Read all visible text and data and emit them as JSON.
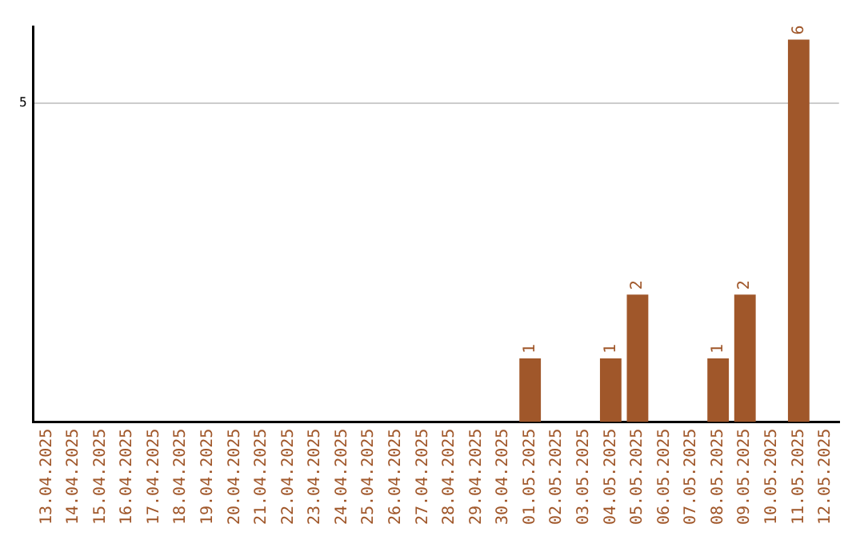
{
  "chart_data": {
    "type": "bar",
    "categories": [
      "13.04.2025",
      "14.04.2025",
      "15.04.2025",
      "16.04.2025",
      "17.04.2025",
      "18.04.2025",
      "19.04.2025",
      "20.04.2025",
      "21.04.2025",
      "22.04.2025",
      "23.04.2025",
      "24.04.2025",
      "25.04.2025",
      "26.04.2025",
      "27.04.2025",
      "28.04.2025",
      "29.04.2025",
      "30.04.2025",
      "01.05.2025",
      "02.05.2025",
      "03.05.2025",
      "04.05.2025",
      "05.05.2025",
      "06.05.2025",
      "07.05.2025",
      "08.05.2025",
      "09.05.2025",
      "10.05.2025",
      "11.05.2025",
      "12.05.2025"
    ],
    "values": [
      null,
      null,
      null,
      null,
      null,
      null,
      null,
      null,
      null,
      null,
      null,
      null,
      null,
      null,
      null,
      null,
      null,
      null,
      1,
      null,
      null,
      1,
      2,
      null,
      null,
      1,
      2,
      null,
      6,
      null
    ],
    "color": "#a0572a",
    "value_labels": [
      null,
      null,
      null,
      null,
      null,
      null,
      null,
      null,
      null,
      null,
      null,
      null,
      null,
      null,
      null,
      null,
      null,
      null,
      "1",
      null,
      null,
      "1",
      "2",
      null,
      null,
      "1",
      "2",
      null,
      "6",
      null
    ],
    "ylim": [
      0,
      6.2
    ],
    "yticks": [
      5
    ],
    "grid": "y",
    "legend": false
  }
}
